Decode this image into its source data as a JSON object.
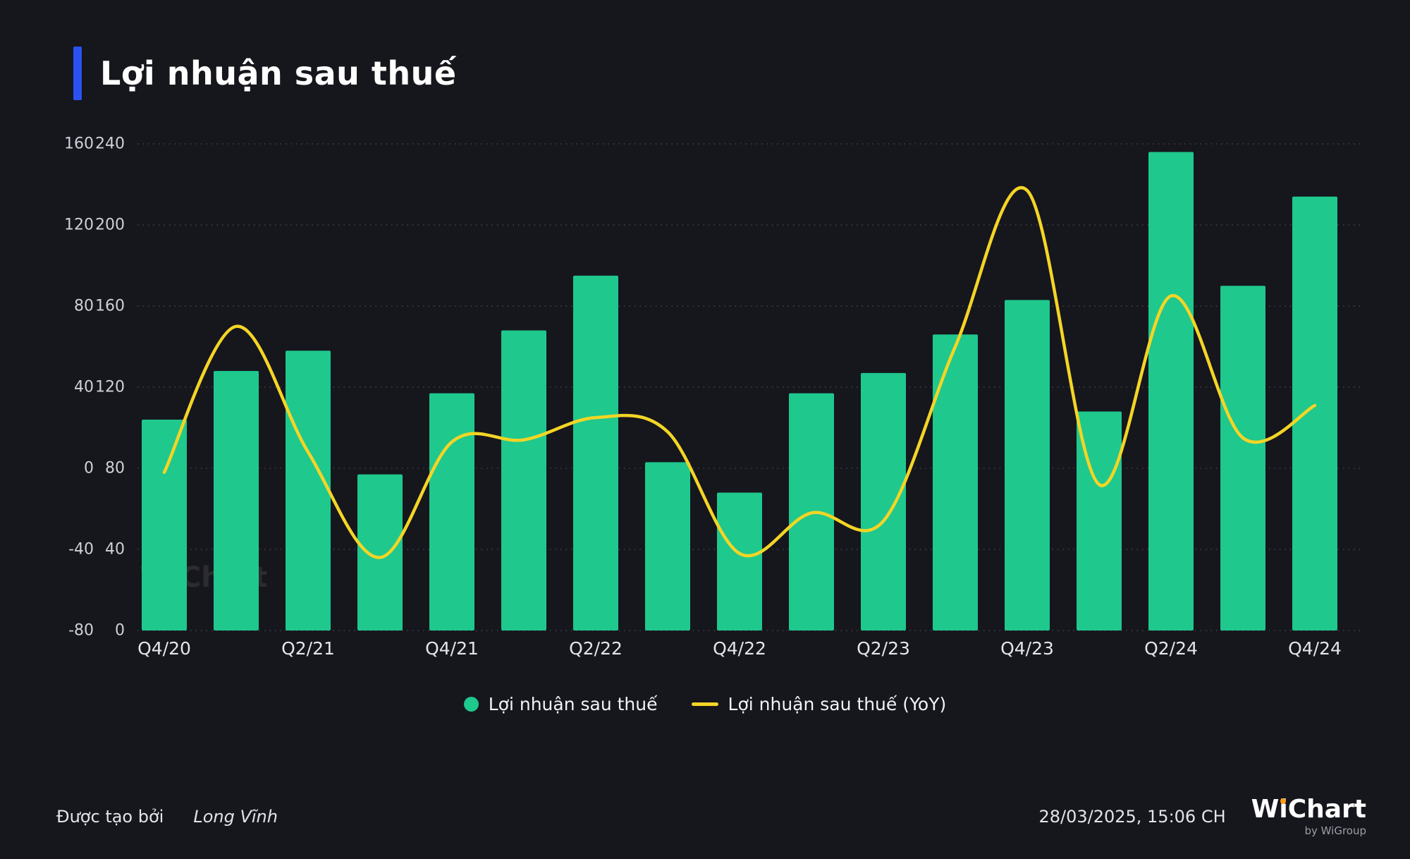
{
  "page": {
    "title": "Lợi nhuận sau thuế",
    "accent_color": "#2b52f0",
    "background_color": "#16161d"
  },
  "chart_data": {
    "type": "bar",
    "categories": [
      "Q4/20",
      "Q1/21",
      "Q2/21",
      "Q3/21",
      "Q4/21",
      "Q1/22",
      "Q2/22",
      "Q3/22",
      "Q4/22",
      "Q1/23",
      "Q2/23",
      "Q3/23",
      "Q4/23",
      "Q1/24",
      "Q2/24",
      "Q3/24",
      "Q4/24"
    ],
    "x_tick_labels": [
      "Q4/20",
      "Q2/21",
      "Q4/21",
      "Q2/22",
      "Q4/22",
      "Q2/23",
      "Q4/23",
      "Q2/24",
      "Q4/24"
    ],
    "series": [
      {
        "name": "Lợi nhuận sau thuế",
        "type": "bar",
        "axis": "right",
        "color": "#1fc88d",
        "values": [
          104,
          128,
          138,
          77,
          117,
          148,
          175,
          83,
          68,
          117,
          127,
          146,
          163,
          108,
          236,
          170,
          214
        ]
      },
      {
        "name": "Lợi nhuận sau thuế (YoY)",
        "type": "line",
        "axis": "left",
        "color": "#f4d525",
        "values": [
          -2,
          70,
          8,
          -44,
          13,
          14,
          25,
          18,
          -42,
          -22,
          -26,
          60,
          137,
          -8,
          85,
          15,
          31
        ]
      }
    ],
    "left_axis": {
      "min": -80,
      "max": 160,
      "ticks": [
        160,
        120,
        80,
        40,
        0,
        -40,
        -80
      ]
    },
    "right_axis": {
      "min": 0,
      "max": 240,
      "ticks": [
        240,
        200,
        160,
        120,
        80,
        40,
        0
      ]
    },
    "grid": "dotted",
    "legend_position": "bottom"
  },
  "legend": [
    {
      "label": "Lợi nhuận sau thuế",
      "marker": "circle",
      "color": "#1fc88d"
    },
    {
      "label": "Lợi nhuận sau thuế (YoY)",
      "marker": "line",
      "color": "#f4d525"
    }
  ],
  "watermark": "WiChart",
  "footer": {
    "created_by_label": "Được tạo bởi",
    "author": "Long Vĩnh",
    "timestamp": "28/03/2025, 15:06 CH",
    "logo_text": "WiChart",
    "logo_sub": "by WiGroup"
  }
}
